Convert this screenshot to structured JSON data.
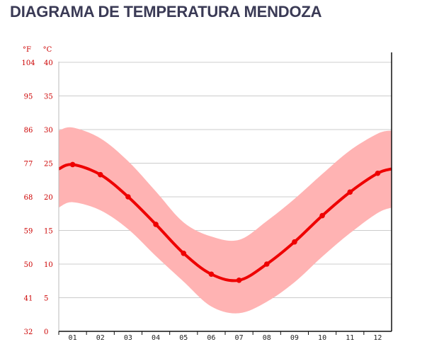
{
  "title": "DIAGRAMA DE TEMPERATURA MENDOZA",
  "chart_data": {
    "type": "line",
    "title": "DIAGRAMA DE TEMPERATURA MENDOZA",
    "units": {
      "f": "°F",
      "c": "°C"
    },
    "categories": [
      "01",
      "02",
      "03",
      "04",
      "05",
      "06",
      "07",
      "08",
      "09",
      "10",
      "11",
      "12"
    ],
    "c_ticks": [
      "0",
      "5",
      "10",
      "15",
      "20",
      "25",
      "30",
      "35",
      "40"
    ],
    "f_ticks": [
      "32",
      "41",
      "50",
      "59",
      "68",
      "77",
      "86",
      "95",
      "104"
    ],
    "ylim": [
      0,
      40
    ],
    "grid": true,
    "series": [
      {
        "role": "mean",
        "values": [
          24.8,
          23.3,
          20.0,
          15.9,
          11.6,
          8.5,
          7.6,
          10.0,
          13.3,
          17.2,
          20.7,
          23.5
        ]
      },
      {
        "role": "max",
        "values": [
          30.3,
          28.7,
          25.3,
          20.8,
          16.2,
          14.1,
          13.6,
          16.4,
          19.7,
          23.4,
          26.9,
          29.4
        ]
      },
      {
        "role": "min",
        "values": [
          19.2,
          18.0,
          15.2,
          11.2,
          7.4,
          3.7,
          2.7,
          4.4,
          7.3,
          11.1,
          14.6,
          17.6
        ]
      }
    ],
    "colors": {
      "line": "#ee0000",
      "band": "#ffb3b3",
      "tick_text": "#cc0000",
      "grid": "#cccccc"
    }
  }
}
